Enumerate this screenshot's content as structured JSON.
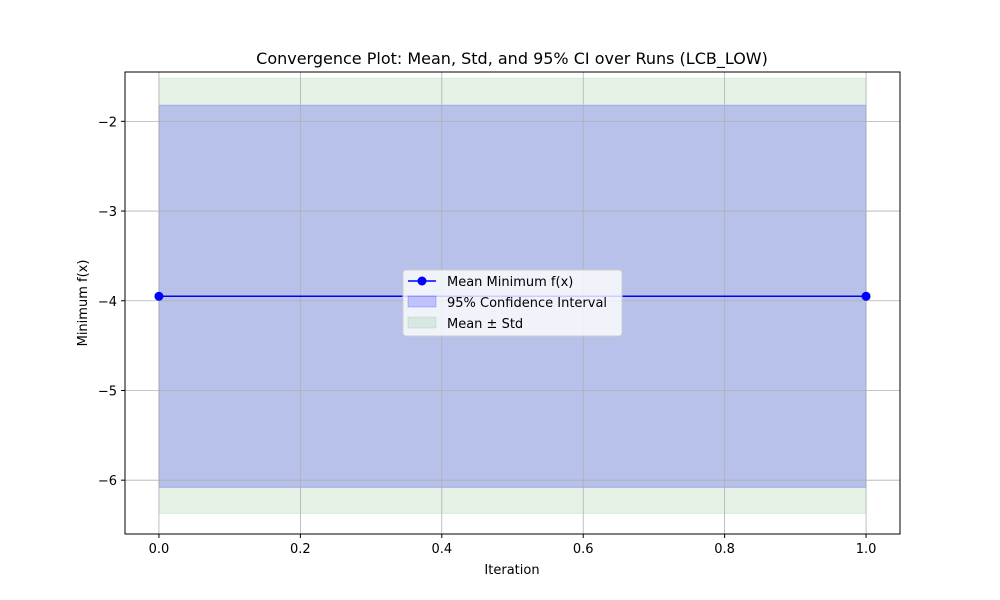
{
  "chart_data": {
    "type": "line",
    "title": "Convergence Plot: Mean, Std, and 95% CI over Runs (LCB_LOW)",
    "xlabel": "Iteration",
    "ylabel": "Minimum f(x)",
    "xlim": [
      -0.048,
      1.048
    ],
    "ylim": [
      -6.6,
      -1.45
    ],
    "x_ticks": [
      0.0,
      0.2,
      0.4,
      0.6,
      0.8,
      1.0
    ],
    "x_tick_labels": [
      "0.0",
      "0.2",
      "0.4",
      "0.6",
      "0.8",
      "1.0"
    ],
    "y_ticks": [
      -6,
      -5,
      -4,
      -3,
      -2
    ],
    "y_tick_labels": [
      "−6",
      "−5",
      "−4",
      "−3",
      "−2"
    ],
    "grid": true,
    "legend_position": "center",
    "x": [
      0.0,
      1.0
    ],
    "series": [
      {
        "name": "Mean Minimum f(x)",
        "type": "line",
        "marker": "circle",
        "color": "#0000ff",
        "values": [
          -3.95,
          -3.95
        ]
      },
      {
        "name": "95% Confidence Interval",
        "type": "band",
        "color": "#0000ff",
        "opacity": 0.2,
        "lower": [
          -6.08,
          -6.08
        ],
        "upper": [
          -1.82,
          -1.82
        ]
      },
      {
        "name": "Mean ± Std",
        "type": "band",
        "color": "#008000",
        "opacity": 0.1,
        "lower": [
          -6.37,
          -6.37
        ],
        "upper": [
          -1.52,
          -1.52
        ]
      }
    ]
  }
}
